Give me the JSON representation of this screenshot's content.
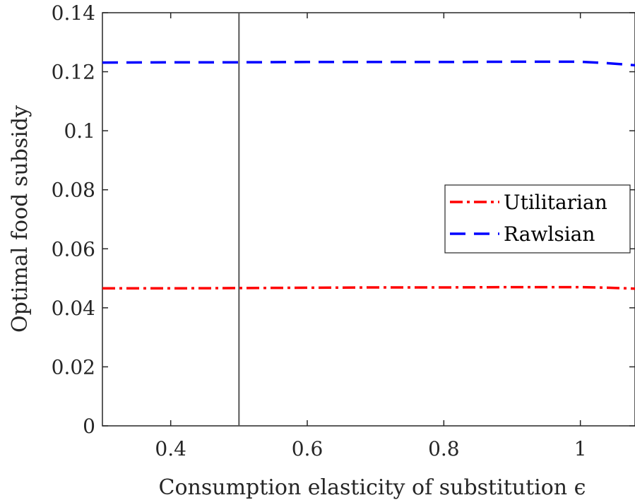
{
  "chart_data": {
    "type": "line",
    "title": "",
    "xlabel": "Consumption elasticity of substitution ϵ",
    "ylabel": "Optimal food subsidy",
    "xlim": [
      0.3,
      1.08
    ],
    "ylim": [
      0,
      0.14
    ],
    "x_ticks": [
      0.4,
      0.6,
      0.8,
      1.0
    ],
    "x_tick_labels": [
      "0.4",
      "0.6",
      "0.8",
      "1"
    ],
    "y_ticks": [
      0,
      0.02,
      0.04,
      0.06,
      0.08,
      0.1,
      0.12,
      0.14
    ],
    "y_tick_labels": [
      "0",
      "0.02",
      "0.04",
      "0.06",
      "0.08",
      "0.1",
      "0.12",
      "0.14"
    ],
    "grid": false,
    "legend_position": "right",
    "vline": {
      "x": 0.5,
      "color": "#555555"
    },
    "series": [
      {
        "name": "Utilitarian",
        "color": "#ff0000",
        "style": "dash-dot",
        "x": [
          0.3,
          0.4,
          0.5,
          0.6,
          0.7,
          0.8,
          0.9,
          1.0,
          1.04,
          1.08
        ],
        "y": [
          0.0466,
          0.0466,
          0.0467,
          0.0468,
          0.0469,
          0.0469,
          0.047,
          0.047,
          0.0468,
          0.0465
        ]
      },
      {
        "name": "Rawlsian",
        "color": "#0000ff",
        "style": "dashed",
        "x": [
          0.3,
          0.4,
          0.5,
          0.6,
          0.7,
          0.8,
          0.9,
          1.0,
          1.04,
          1.08
        ],
        "y": [
          0.1231,
          0.1232,
          0.1232,
          0.1233,
          0.1233,
          0.1233,
          0.1234,
          0.1234,
          0.1229,
          0.1222
        ]
      }
    ]
  }
}
